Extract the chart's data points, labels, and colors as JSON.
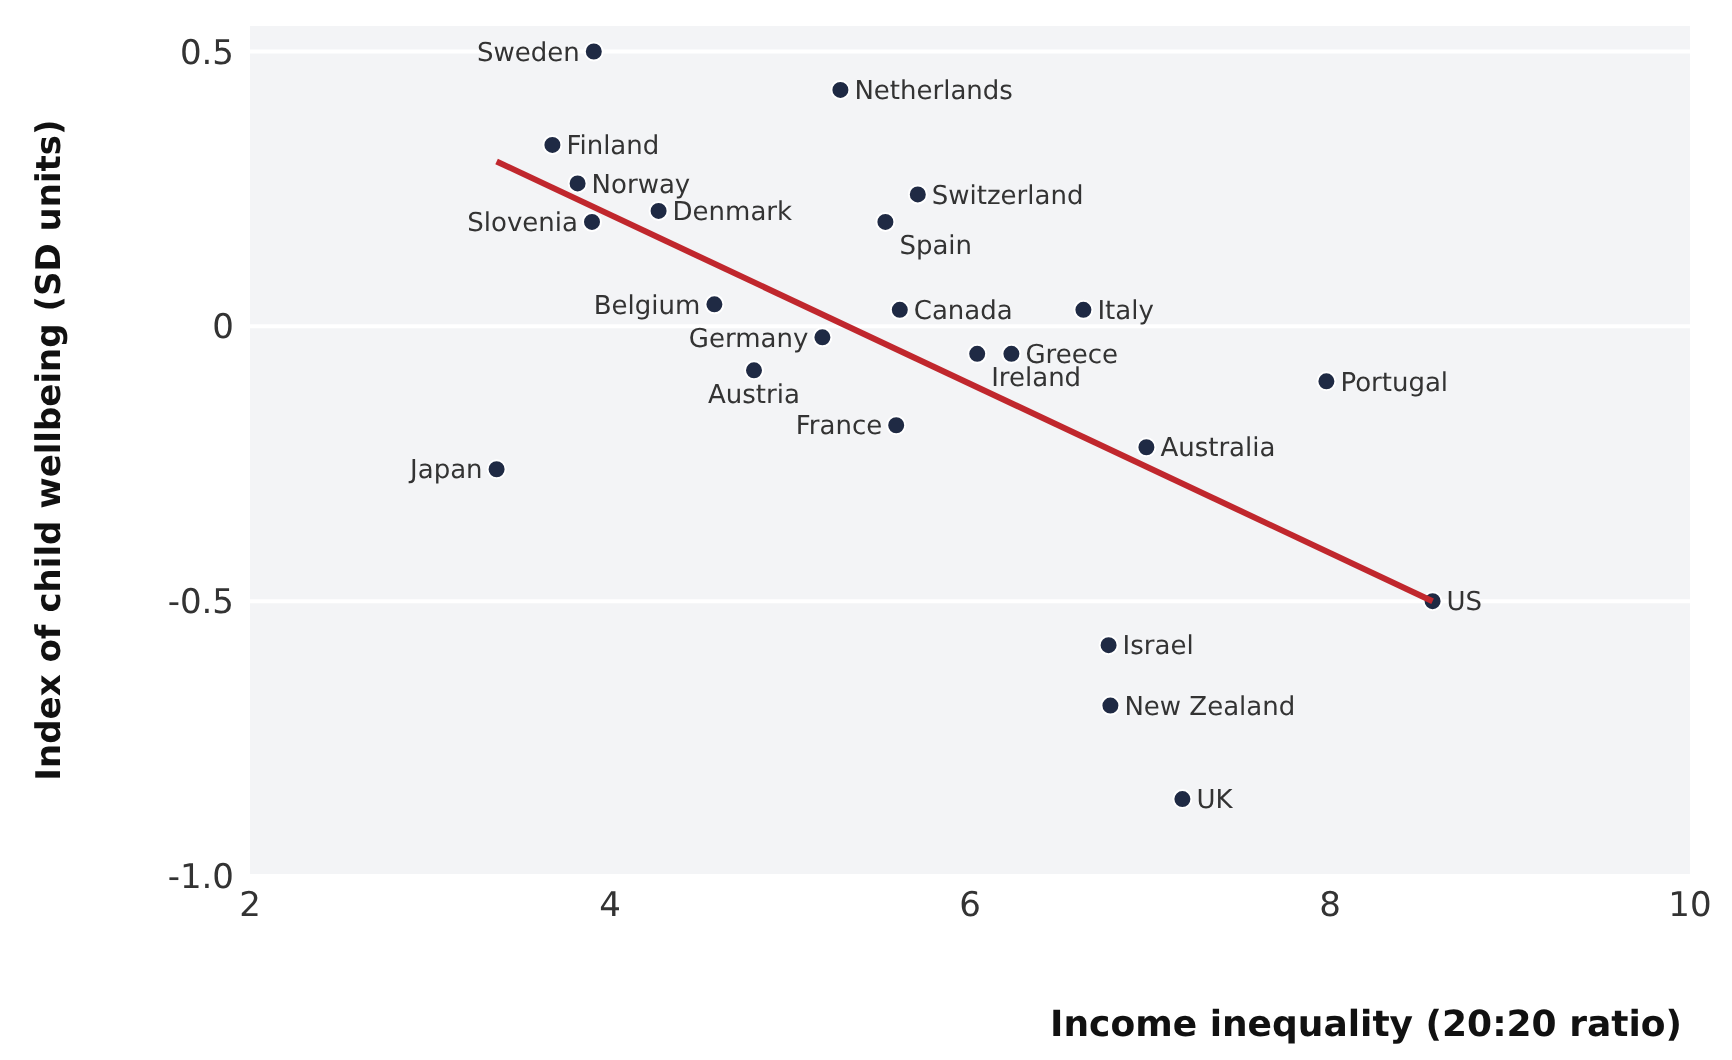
{
  "chart_data": {
    "type": "scatter",
    "xlabel": "Income inequality (20:20 ratio)",
    "ylabel": "Index of child wellbeing (SD units)",
    "xlim": [
      2,
      10
    ],
    "xticks": [
      2,
      4,
      6,
      8,
      10
    ],
    "ylim": [
      -1,
      0.55
    ],
    "yticks": [
      {
        "value": -1,
        "label": "-1.0"
      },
      -0.5,
      0,
      0.5
    ],
    "grid": "y",
    "marker": "circle",
    "series": [
      {
        "color": "#1f2a44",
        "x": [
          3.91,
          5.28,
          3.68,
          3.82,
          3.9,
          4.27,
          5.71,
          5.53,
          4.58,
          5.61,
          6.63,
          5.18,
          6.23,
          6.04,
          4.8,
          7.98,
          5.59,
          6.98,
          3.37,
          8.57,
          6.77,
          6.78,
          7.18
        ],
        "values": [
          0.5,
          0.43,
          0.33,
          0.26,
          0.19,
          0.21,
          0.24,
          0.19,
          0.04,
          0.03,
          0.03,
          -0.02,
          -0.05,
          -0.05,
          -0.08,
          -0.1,
          -0.18,
          -0.22,
          -0.26,
          -0.5,
          -0.58,
          -0.69,
          -0.86
        ]
      },
      {
        "type": "line",
        "marker": "none",
        "color": "#c0272d",
        "x": [
          3.37,
          8.57
        ],
        "values": [
          0.3,
          -0.5
        ]
      }
    ],
    "annotations": [
      {
        "text": "Sweden",
        "x": 3.91,
        "y": 0.5
      },
      {
        "text": "Netherlands",
        "x": 5.28,
        "y": 0.43
      },
      {
        "text": "Finland",
        "x": 3.68,
        "y": 0.33
      },
      {
        "text": "Norway",
        "x": 3.82,
        "y": 0.26
      },
      {
        "text": "Slovenia",
        "x": 3.9,
        "y": 0.19
      },
      {
        "text": "Denmark",
        "x": 4.27,
        "y": 0.21
      },
      {
        "text": "Switzerland",
        "x": 5.71,
        "y": 0.24
      },
      {
        "text": "Spain",
        "x": 5.53,
        "y": 0.19
      },
      {
        "text": "Belgium",
        "x": 4.58,
        "y": 0.04
      },
      {
        "text": "Canada",
        "x": 5.61,
        "y": 0.03
      },
      {
        "text": "Italy",
        "x": 6.63,
        "y": 0.03
      },
      {
        "text": "Germany",
        "x": 5.18,
        "y": -0.02
      },
      {
        "text": "Greece",
        "x": 6.23,
        "y": -0.05
      },
      {
        "text": "Ireland",
        "x": 6.04,
        "y": -0.05
      },
      {
        "text": "Austria",
        "x": 4.8,
        "y": -0.08
      },
      {
        "text": "Portugal",
        "x": 7.98,
        "y": -0.1
      },
      {
        "text": "France",
        "x": 5.59,
        "y": -0.18
      },
      {
        "text": "Australia",
        "x": 6.98,
        "y": -0.22
      },
      {
        "text": "Japan",
        "x": 3.37,
        "y": -0.26
      },
      {
        "text": "US",
        "x": 8.57,
        "y": -0.5
      },
      {
        "text": "Israel",
        "x": 6.77,
        "y": -0.58
      },
      {
        "text": "New Zealand",
        "x": 6.78,
        "y": -0.69
      },
      {
        "text": "UK",
        "x": 7.18,
        "y": -0.86
      }
    ]
  }
}
